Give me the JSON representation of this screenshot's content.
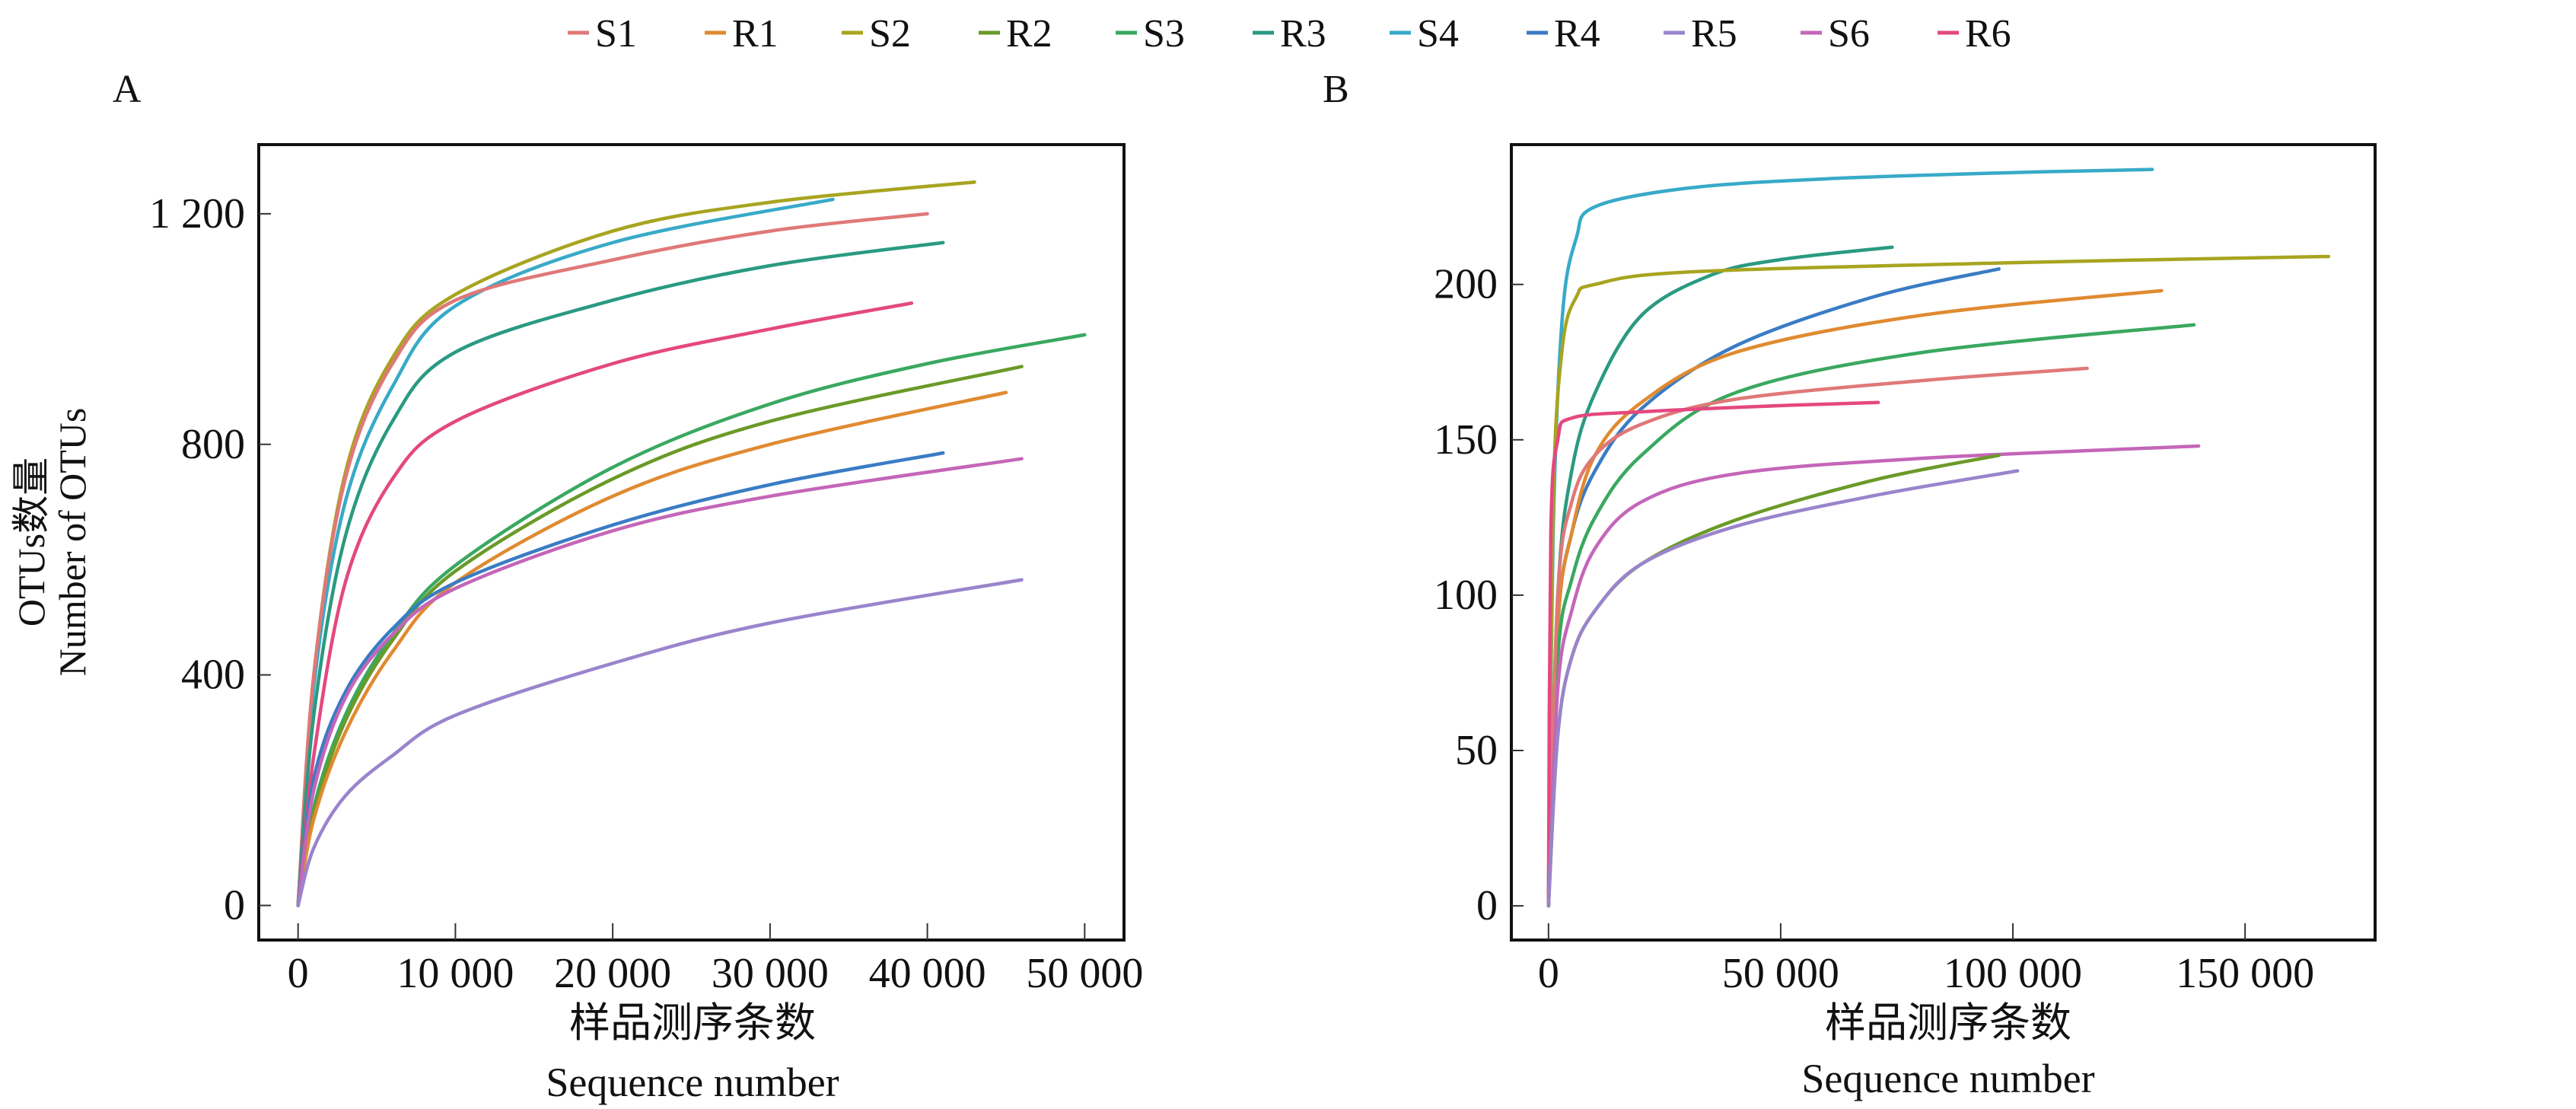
{
  "legend": [
    {
      "name": "S1",
      "color": "#e07878"
    },
    {
      "name": "R1",
      "color": "#e08a30"
    },
    {
      "name": "S2",
      "color": "#a8a420"
    },
    {
      "name": "R2",
      "color": "#6a9a28"
    },
    {
      "name": "S3",
      "color": "#3aa860"
    },
    {
      "name": "R3",
      "color": "#2a9a82"
    },
    {
      "name": "S4",
      "color": "#38aac8"
    },
    {
      "name": "R4",
      "color": "#3a7cc4"
    },
    {
      "name": "R5",
      "color": "#9a84cc"
    },
    {
      "name": "S6",
      "color": "#c466b8"
    },
    {
      "name": "R6",
      "color": "#e4487e"
    }
  ],
  "chart_data": [
    {
      "type": "line",
      "panel_label": "A",
      "ylabel_cn": "OTUs数量",
      "ylabel_en": "Number of OTUs",
      "xlabel_cn": "样品测序条数",
      "xlabel_en": "Sequence number",
      "xlim": [
        -2500,
        52500
      ],
      "ylim": [
        -60,
        1320
      ],
      "xticks": [
        0,
        10000,
        20000,
        30000,
        40000,
        50000
      ],
      "xtick_labels": [
        "0",
        "10 000",
        "20 000",
        "30 000",
        "40 000",
        "50 000"
      ],
      "yticks": [
        0,
        400,
        800,
        1200
      ],
      "ytick_labels": [
        "0",
        "400",
        "800",
        "1 200"
      ],
      "series": [
        {
          "name": "S2",
          "points": [
            [
              0,
              0
            ],
            [
              1000,
              400
            ],
            [
              3000,
              750
            ],
            [
              6000,
              950
            ],
            [
              10000,
              1060
            ],
            [
              20000,
              1170
            ],
            [
              30000,
              1220
            ],
            [
              43000,
              1255
            ]
          ]
        },
        {
          "name": "S4",
          "points": [
            [
              0,
              0
            ],
            [
              1000,
              380
            ],
            [
              3000,
              700
            ],
            [
              6000,
              900
            ],
            [
              10000,
              1040
            ],
            [
              20000,
              1150
            ],
            [
              34000,
              1225
            ]
          ]
        },
        {
          "name": "S1",
          "points": [
            [
              0,
              0
            ],
            [
              1000,
              400
            ],
            [
              3000,
              740
            ],
            [
              6000,
              940
            ],
            [
              10000,
              1050
            ],
            [
              20000,
              1120
            ],
            [
              30000,
              1170
            ],
            [
              40000,
              1200
            ]
          ]
        },
        {
          "name": "R3",
          "points": [
            [
              0,
              0
            ],
            [
              1000,
              330
            ],
            [
              3000,
              640
            ],
            [
              6000,
              840
            ],
            [
              10000,
              960
            ],
            [
              20000,
              1050
            ],
            [
              30000,
              1110
            ],
            [
              41000,
              1150
            ]
          ]
        },
        {
          "name": "R6",
          "points": [
            [
              0,
              0
            ],
            [
              1000,
              260
            ],
            [
              3000,
              560
            ],
            [
              6000,
              740
            ],
            [
              10000,
              840
            ],
            [
              20000,
              940
            ],
            [
              30000,
              1000
            ],
            [
              39000,
              1045
            ]
          ]
        },
        {
          "name": "S3",
          "points": [
            [
              0,
              0
            ],
            [
              1000,
              170
            ],
            [
              3000,
              330
            ],
            [
              6000,
              470
            ],
            [
              10000,
              590
            ],
            [
              20000,
              760
            ],
            [
              30000,
              870
            ],
            [
              40000,
              940
            ],
            [
              50000,
              990
            ]
          ]
        },
        {
          "name": "R2",
          "points": [
            [
              0,
              0
            ],
            [
              1000,
              160
            ],
            [
              3000,
              320
            ],
            [
              6000,
              460
            ],
            [
              10000,
              580
            ],
            [
              20000,
              740
            ],
            [
              30000,
              840
            ],
            [
              46000,
              935
            ]
          ]
        },
        {
          "name": "R1",
          "points": [
            [
              0,
              0
            ],
            [
              1000,
              150
            ],
            [
              3000,
              300
            ],
            [
              6000,
              440
            ],
            [
              10000,
              560
            ],
            [
              20000,
              710
            ],
            [
              30000,
              800
            ],
            [
              45000,
              890
            ]
          ]
        },
        {
          "name": "R4",
          "points": [
            [
              0,
              0
            ],
            [
              1000,
              220
            ],
            [
              3000,
              370
            ],
            [
              6000,
              480
            ],
            [
              10000,
              560
            ],
            [
              20000,
              660
            ],
            [
              30000,
              730
            ],
            [
              41000,
              785
            ]
          ]
        },
        {
          "name": "S6",
          "points": [
            [
              0,
              0
            ],
            [
              1000,
              200
            ],
            [
              3000,
              360
            ],
            [
              6000,
              470
            ],
            [
              10000,
              550
            ],
            [
              20000,
              650
            ],
            [
              30000,
              710
            ],
            [
              46000,
              775
            ]
          ]
        },
        {
          "name": "R5",
          "points": [
            [
              0,
              0
            ],
            [
              1000,
              100
            ],
            [
              3000,
              190
            ],
            [
              6000,
              260
            ],
            [
              10000,
              330
            ],
            [
              20000,
              420
            ],
            [
              30000,
              490
            ],
            [
              46000,
              565
            ]
          ]
        }
      ]
    },
    {
      "type": "line",
      "panel_label": "B",
      "xlabel_cn": "样品测序条数",
      "xlabel_en": "Sequence number",
      "xlim": [
        -8000,
        178000
      ],
      "ylim": [
        -11,
        245
      ],
      "xticks": [
        0,
        50000,
        100000,
        150000
      ],
      "xtick_labels": [
        "0",
        "50 000",
        "100 000",
        "150 000"
      ],
      "yticks": [
        0,
        50,
        100,
        150,
        200
      ],
      "ytick_labels": [
        "0",
        "50",
        "100",
        "150",
        "200"
      ],
      "series": [
        {
          "name": "S4",
          "points": [
            [
              0,
              0
            ],
            [
              1000,
              120
            ],
            [
              3000,
              190
            ],
            [
              6000,
              215
            ],
            [
              10000,
              225
            ],
            [
              30000,
              231
            ],
            [
              60000,
              234
            ],
            [
              100000,
              236
            ],
            [
              130000,
              237
            ]
          ]
        },
        {
          "name": "R3",
          "points": [
            [
              0,
              0
            ],
            [
              2000,
              100
            ],
            [
              5000,
              140
            ],
            [
              10000,
              165
            ],
            [
              20000,
              190
            ],
            [
              35000,
              203
            ],
            [
              50000,
              208
            ],
            [
              74000,
              212
            ]
          ]
        },
        {
          "name": "S2",
          "points": [
            [
              0,
              0
            ],
            [
              1000,
              130
            ],
            [
              3000,
              180
            ],
            [
              6000,
              196
            ],
            [
              10000,
              200
            ],
            [
              30000,
              204
            ],
            [
              100000,
              207
            ],
            [
              168000,
              209
            ]
          ]
        },
        {
          "name": "R4",
          "points": [
            [
              0,
              0
            ],
            [
              2000,
              90
            ],
            [
              5000,
              120
            ],
            [
              10000,
              140
            ],
            [
              20000,
              160
            ],
            [
              40000,
              180
            ],
            [
              70000,
              196
            ],
            [
              97000,
              205
            ]
          ]
        },
        {
          "name": "R1",
          "points": [
            [
              0,
              0
            ],
            [
              2000,
              90
            ],
            [
              5000,
              120
            ],
            [
              10000,
              145
            ],
            [
              20000,
              162
            ],
            [
              40000,
              178
            ],
            [
              80000,
              190
            ],
            [
              132000,
              198
            ]
          ]
        },
        {
          "name": "S3",
          "points": [
            [
              0,
              0
            ],
            [
              2000,
              80
            ],
            [
              5000,
              105
            ],
            [
              10000,
              125
            ],
            [
              20000,
              145
            ],
            [
              40000,
              165
            ],
            [
              80000,
              178
            ],
            [
              139000,
              187
            ]
          ]
        },
        {
          "name": "S1",
          "points": [
            [
              0,
              0
            ],
            [
              2000,
              100
            ],
            [
              5000,
              130
            ],
            [
              10000,
              145
            ],
            [
              20000,
              155
            ],
            [
              40000,
              163
            ],
            [
              80000,
              169
            ],
            [
              116000,
              173
            ]
          ]
        },
        {
          "name": "R6",
          "points": [
            [
              0,
              0
            ],
            [
              500,
              120
            ],
            [
              2000,
              150
            ],
            [
              5000,
              157
            ],
            [
              20000,
              159
            ],
            [
              50000,
              161
            ],
            [
              71000,
              162
            ]
          ]
        },
        {
          "name": "S6",
          "points": [
            [
              0,
              0
            ],
            [
              2000,
              70
            ],
            [
              5000,
              95
            ],
            [
              10000,
              115
            ],
            [
              20000,
              130
            ],
            [
              40000,
              139
            ],
            [
              80000,
              144
            ],
            [
              140000,
              148
            ]
          ]
        },
        {
          "name": "R2",
          "points": [
            [
              0,
              0
            ],
            [
              2000,
              55
            ],
            [
              5000,
              80
            ],
            [
              10000,
              95
            ],
            [
              20000,
              110
            ],
            [
              40000,
              124
            ],
            [
              70000,
              137
            ],
            [
              97000,
              145
            ]
          ]
        },
        {
          "name": "R5",
          "points": [
            [
              0,
              0
            ],
            [
              2000,
              55
            ],
            [
              5000,
              80
            ],
            [
              10000,
              95
            ],
            [
              20000,
              110
            ],
            [
              40000,
              122
            ],
            [
              70000,
              132
            ],
            [
              101000,
              140
            ]
          ]
        }
      ]
    }
  ]
}
